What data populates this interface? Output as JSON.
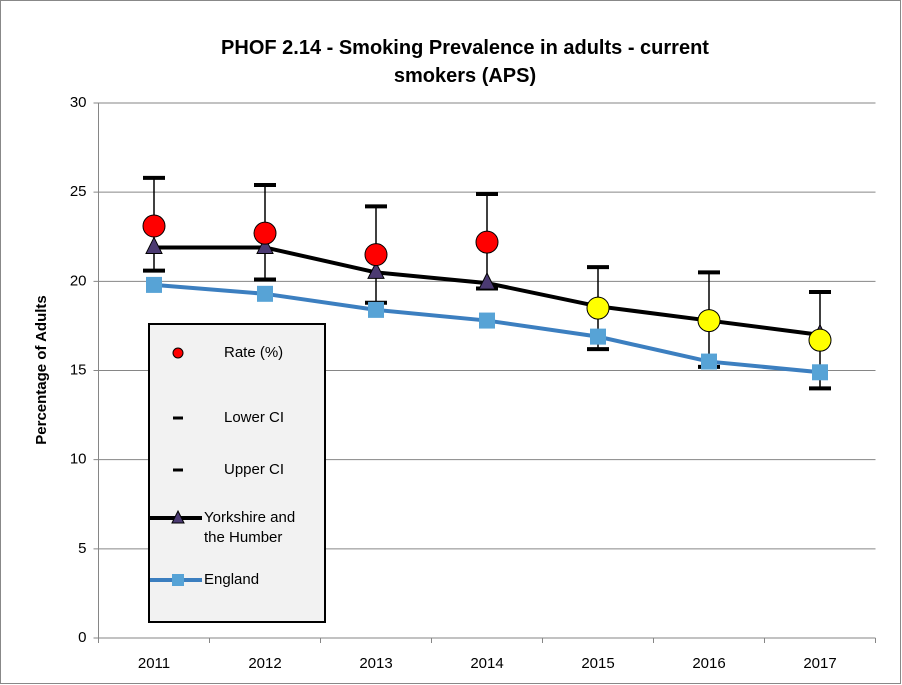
{
  "chart_data": {
    "type": "line",
    "title": "PHOF 2.14 - Smoking Prevalence in adults - current smokers (APS)",
    "y_label": "Percentage of Adults",
    "categories": [
      "2011",
      "2012",
      "2013",
      "2014",
      "2015",
      "2016",
      "2017"
    ],
    "ylim": [
      0,
      30
    ],
    "yticks": [
      0,
      5,
      10,
      15,
      20,
      25,
      30
    ],
    "grid": true,
    "legend": "left",
    "series": [
      {
        "name": "Rate (%)",
        "color": "#ff0000",
        "point_colors": [
          "#ff0000",
          "#ff0000",
          "#ff0000",
          "#ff0000",
          "#ffff00",
          "#ffff00",
          "#ffff00"
        ],
        "values": [
          23.1,
          22.7,
          21.5,
          22.2,
          18.5,
          17.8,
          16.7
        ]
      },
      {
        "name": "Lower CI",
        "color": "#000000",
        "values": [
          20.6,
          20.1,
          18.8,
          19.6,
          16.2,
          15.2,
          14.0
        ]
      },
      {
        "name": "Upper CI",
        "color": "#000000",
        "values": [
          25.8,
          25.4,
          24.2,
          24.9,
          20.8,
          20.5,
          19.4
        ]
      },
      {
        "name": "Yorkshire and the Humber",
        "color": "#000000",
        "marker_color": "#4b3a72",
        "values": [
          21.9,
          21.9,
          20.5,
          19.9,
          18.6,
          17.8,
          17.0
        ]
      },
      {
        "name": "England",
        "color": "#3c7fc0",
        "marker_color": "#57a3d6",
        "values": [
          19.8,
          19.3,
          18.4,
          17.8,
          16.9,
          15.5,
          14.9
        ]
      }
    ]
  }
}
